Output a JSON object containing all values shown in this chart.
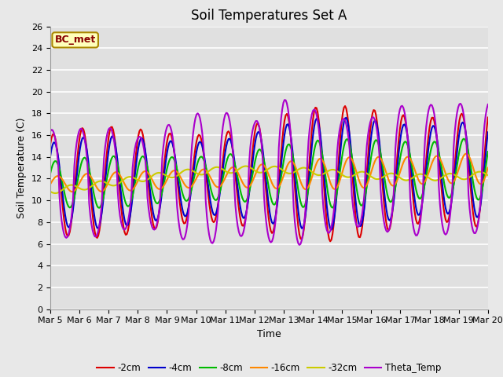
{
  "title": "Soil Temperatures Set A",
  "xlabel": "Time",
  "ylabel": "Soil Temperature (C)",
  "annotation": "BC_met",
  "ylim": [
    0,
    26
  ],
  "yticks": [
    0,
    2,
    4,
    6,
    8,
    10,
    12,
    14,
    16,
    18,
    20,
    22,
    24,
    26
  ],
  "xtick_labels": [
    "Mar 5",
    "Mar 6",
    "Mar 7",
    "Mar 8",
    "Mar 9",
    "Mar 10",
    "Mar 11",
    "Mar 12",
    "Mar 13",
    "Mar 14",
    "Mar 15",
    "Mar 16",
    "Mar 17",
    "Mar 18",
    "Mar 19",
    "Mar 20"
  ],
  "series_colors": {
    "-2cm": "#dd0000",
    "-4cm": "#0000cc",
    "-8cm": "#00bb00",
    "-16cm": "#ff8800",
    "-32cm": "#cccc00",
    "Theta_Temp": "#aa00cc"
  },
  "series_order": [
    "-2cm",
    "-4cm",
    "-8cm",
    "-16cm",
    "-32cm",
    "Theta_Temp"
  ],
  "linewidth": 1.5,
  "background_color": "#e8e8e8",
  "plot_bg_color": "#e0e0e0",
  "grid_color": "#ffffff",
  "annotation_bg": "#ffffbb",
  "annotation_fg": "#880000",
  "annotation_border": "#aa8800",
  "title_fontsize": 12,
  "label_fontsize": 9,
  "tick_fontsize": 8
}
